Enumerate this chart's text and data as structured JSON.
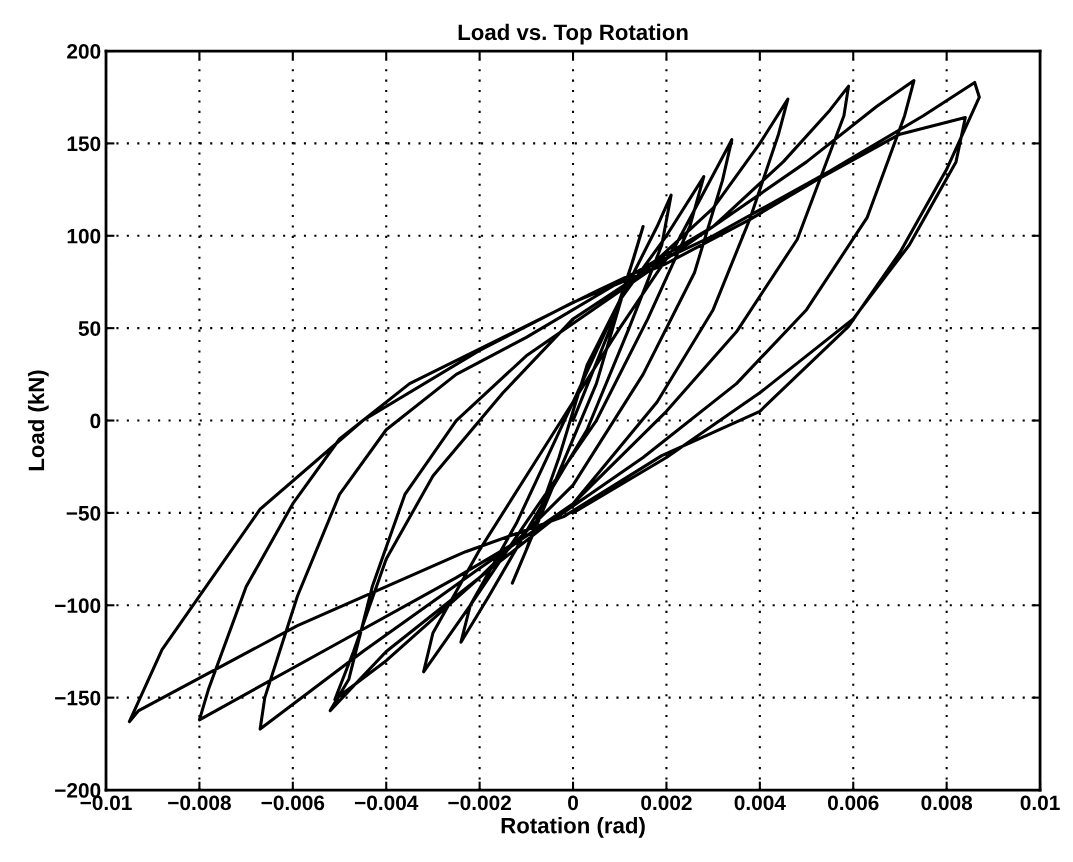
{
  "chart_data": {
    "type": "line",
    "title": "Load vs. Top Rotation",
    "xlabel": "Rotation (rad)",
    "ylabel": "Load (kN)",
    "xlim": [
      -0.01,
      0.01
    ],
    "xticks": [
      -0.01,
      -0.008,
      -0.006,
      -0.004,
      -0.002,
      0,
      0.002,
      0.004,
      0.006,
      0.008,
      0.01
    ],
    "ylim": [
      -200,
      200
    ],
    "yticks": [
      -200,
      -150,
      -100,
      -50,
      0,
      50,
      100,
      150,
      200
    ],
    "grid": true,
    "marker": "none",
    "line_style": "solid",
    "series": [
      {
        "color": "#000000",
        "x": [
          0,
          0.0008,
          0.0013,
          0.0015,
          0.0012,
          0.0005,
          -0.0005,
          -0.0013,
          -0.001,
          -0.0003,
          0.0003,
          0.0012,
          0.0018,
          0.0021,
          0.0019,
          0.0012,
          0.0003,
          -0.001,
          -0.0018,
          -0.0024,
          -0.0022,
          -0.0012,
          0.0,
          0.001,
          0.002,
          0.0028,
          0.0025,
          0.0016,
          0.0005,
          -0.001,
          -0.0022,
          -0.0032,
          -0.003,
          -0.002,
          -0.0005,
          0.001,
          0.0022,
          0.0034,
          0.0032,
          0.0026,
          0.0015,
          0.0,
          -0.002,
          -0.004,
          -0.0051,
          -0.0047,
          -0.004,
          -0.003,
          -0.0015,
          0.0,
          0.0015,
          0.003,
          0.004,
          0.0046,
          0.0044,
          0.0038,
          0.003,
          0.0018,
          0.0,
          -0.002,
          -0.004,
          -0.0052,
          -0.0048,
          -0.0043,
          -0.0036,
          -0.0025,
          -0.001,
          0.001,
          0.003,
          0.0045,
          0.0055,
          0.0059,
          0.0058,
          0.0048,
          0.0035,
          0.002,
          0.0,
          -0.002,
          -0.0045,
          -0.0067,
          -0.0066,
          -0.0059,
          -0.005,
          -0.004,
          -0.0025,
          -0.001,
          0.001,
          0.003,
          0.005,
          0.0065,
          0.0073,
          0.0071,
          0.0063,
          0.005,
          0.0035,
          0.0015,
          -0.0005,
          -0.0025,
          -0.005,
          -0.008,
          -0.0078,
          -0.007,
          -0.006,
          -0.005,
          -0.0035,
          -0.0015,
          0.0005,
          0.003,
          0.0055,
          0.0075,
          0.0086,
          0.0087,
          0.008,
          0.007,
          0.0059,
          0.004,
          0.0019,
          -0.0002,
          -0.0023,
          -0.0059,
          -0.0093,
          -0.0095,
          -0.0088,
          -0.008,
          -0.0067,
          -0.0045,
          -0.002,
          0.0,
          0.002,
          0.0038,
          0.0052,
          0.007,
          0.0084,
          0.0082,
          0.0072,
          0.006,
          0.004,
          0.002,
          0.0
        ],
        "values": [
          0,
          50,
          88,
          105,
          80,
          20,
          -40,
          -88,
          -70,
          -20,
          30,
          75,
          105,
          122,
          95,
          50,
          -5,
          -60,
          -95,
          -120,
          -100,
          -55,
          10,
          65,
          100,
          132,
          105,
          55,
          0,
          -55,
          -100,
          -136,
          -115,
          -70,
          -10,
          50,
          95,
          152,
          130,
          80,
          25,
          -35,
          -85,
          -130,
          -151,
          -125,
          -75,
          -30,
          15,
          55,
          80,
          115,
          150,
          174,
          155,
          110,
          60,
          10,
          -45,
          -85,
          -125,
          -157,
          -140,
          -90,
          -40,
          0,
          35,
          70,
          105,
          140,
          168,
          181,
          165,
          98,
          48,
          5,
          -45,
          -80,
          -125,
          -167,
          -150,
          -95,
          -40,
          -5,
          25,
          45,
          75,
          105,
          140,
          170,
          184,
          165,
          110,
          60,
          20,
          -20,
          -55,
          -85,
          -120,
          -162,
          -145,
          -90,
          -45,
          -10,
          20,
          45,
          70,
          100,
          135,
          165,
          183,
          175,
          136,
          91,
          51,
          5,
          -19,
          -52,
          -71,
          -111,
          -157,
          -163,
          -124,
          -95,
          -48,
          0,
          38,
          64,
          85,
          109,
          130,
          155,
          164,
          140,
          95,
          55,
          15,
          -20,
          -50
        ]
      }
    ]
  }
}
